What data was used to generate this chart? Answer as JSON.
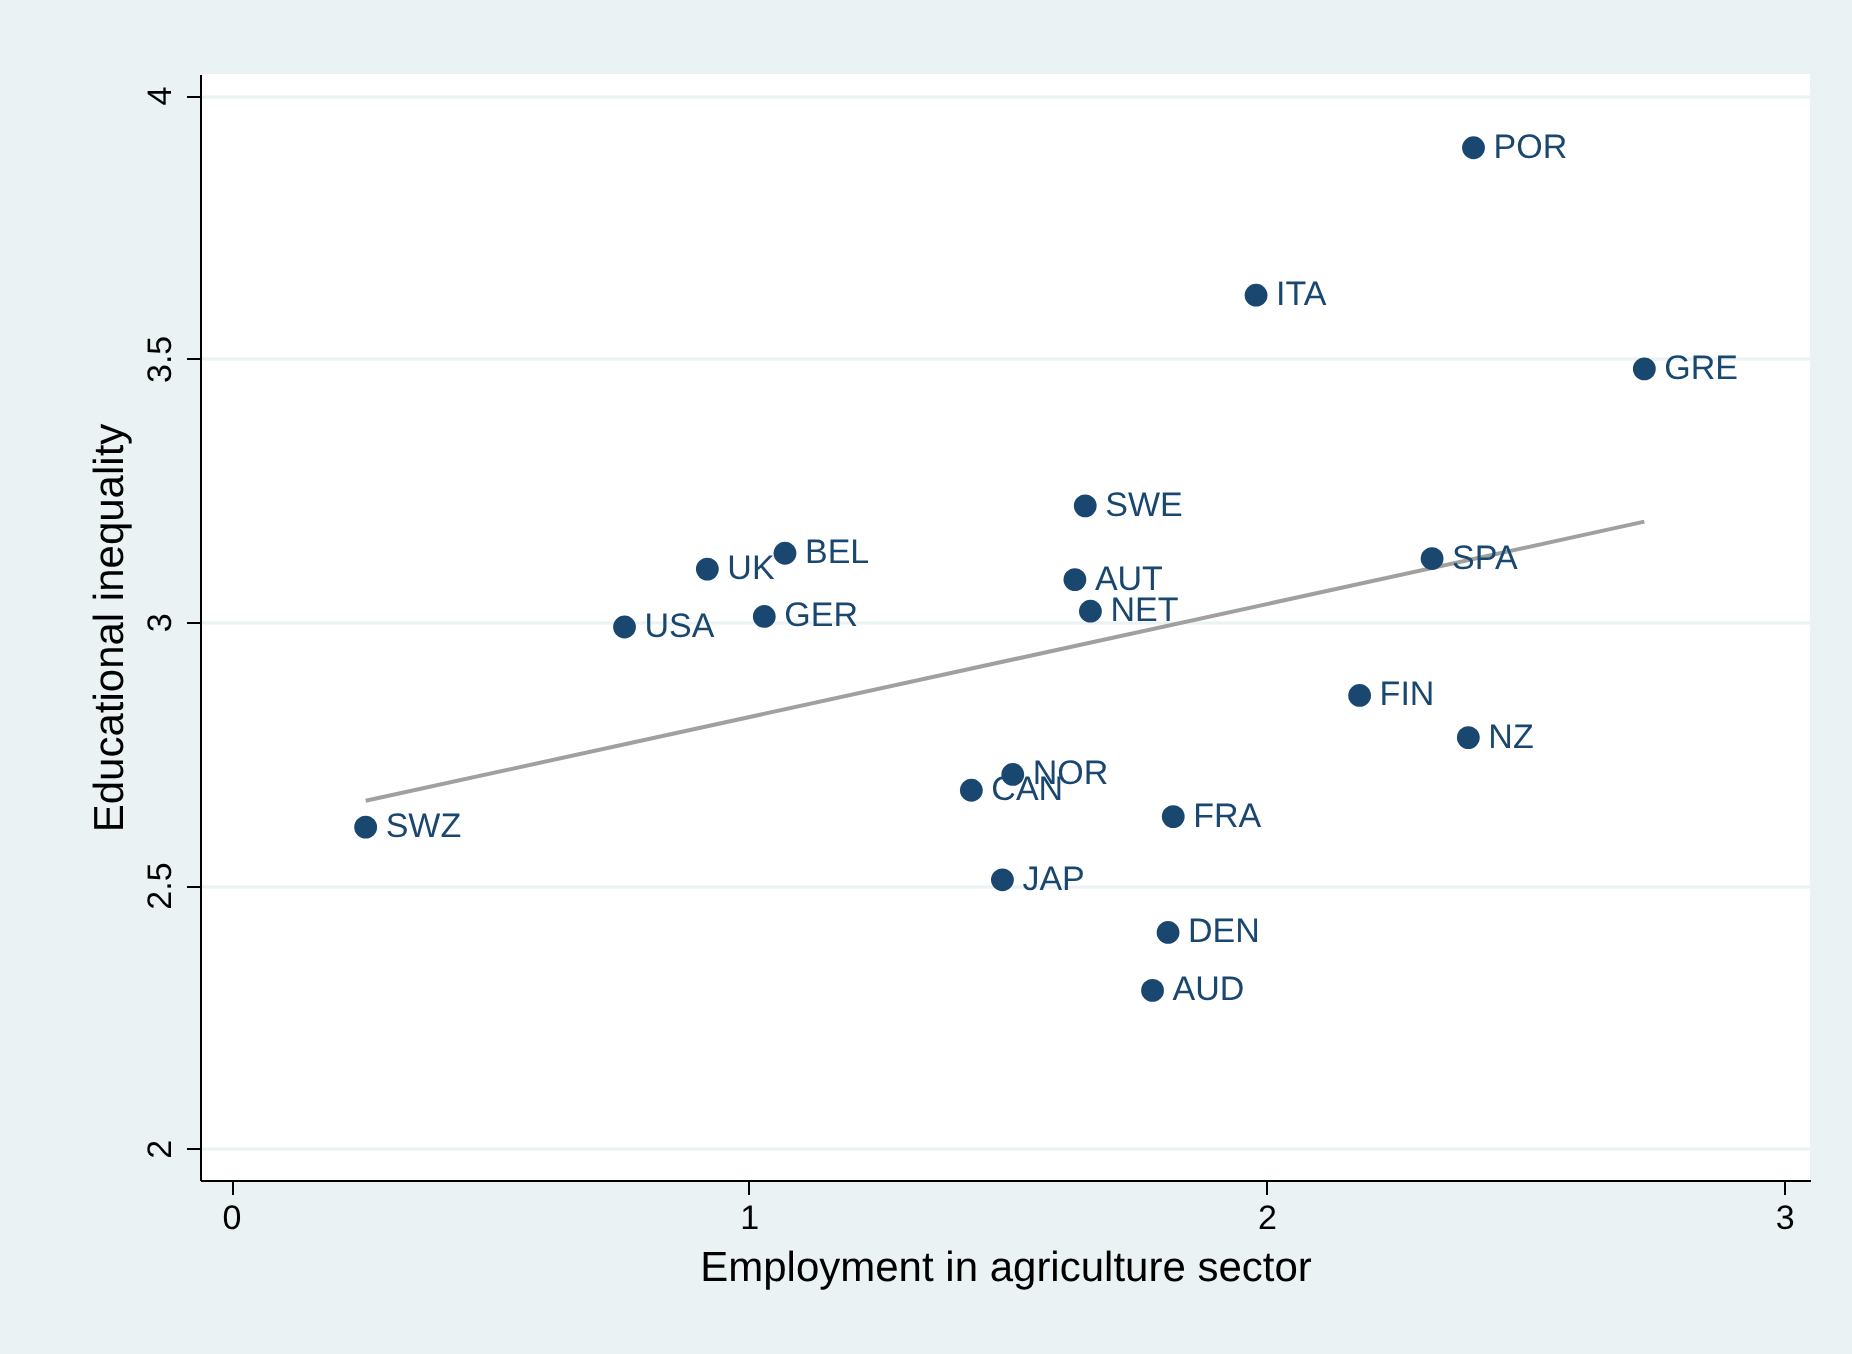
{
  "chart_data": {
    "type": "scatter",
    "xlabel": "Employment in agriculture sector",
    "ylabel": "Educational inequality",
    "xlim": [
      -0.06,
      3.05
    ],
    "ylim": [
      1.94,
      4.04
    ],
    "xticks": [
      0,
      1,
      2,
      3
    ],
    "yticks": [
      2,
      2.5,
      3,
      3.5,
      4
    ],
    "grid": "y",
    "series": [
      {
        "marker": "circle",
        "color": "#1a476f",
        "x": [
          2.4,
          1.98,
          2.73,
          1.65,
          2.32,
          1.07,
          0.92,
          1.63,
          1.66,
          1.03,
          0.76,
          2.18,
          2.39,
          1.51,
          1.43,
          1.82,
          0.26,
          1.49,
          1.81,
          1.78
        ],
        "values": [
          3.9,
          3.62,
          3.48,
          3.22,
          3.12,
          3.13,
          3.1,
          3.08,
          3.02,
          3.01,
          2.99,
          2.86,
          2.78,
          2.71,
          2.68,
          2.63,
          2.61,
          2.51,
          2.41,
          2.3
        ]
      },
      {
        "type": "line",
        "marker": "none",
        "color": "#a0a0a0",
        "x": [
          0.26,
          2.73
        ],
        "values": [
          2.66,
          3.19
        ]
      }
    ],
    "annotations": [
      {
        "text": "POR",
        "x": 2.4,
        "y": 3.9
      },
      {
        "text": "ITA",
        "x": 1.98,
        "y": 3.62
      },
      {
        "text": "GRE",
        "x": 2.73,
        "y": 3.48
      },
      {
        "text": "SWE",
        "x": 1.65,
        "y": 3.22
      },
      {
        "text": "SPA",
        "x": 2.32,
        "y": 3.12
      },
      {
        "text": "BEL",
        "x": 1.07,
        "y": 3.13
      },
      {
        "text": "UK",
        "x": 0.92,
        "y": 3.1
      },
      {
        "text": "AUT",
        "x": 1.63,
        "y": 3.08
      },
      {
        "text": "NET",
        "x": 1.66,
        "y": 3.02
      },
      {
        "text": "GER",
        "x": 1.03,
        "y": 3.01
      },
      {
        "text": "USA",
        "x": 0.76,
        "y": 2.99
      },
      {
        "text": "FIN",
        "x": 2.18,
        "y": 2.86
      },
      {
        "text": "NZ",
        "x": 2.39,
        "y": 2.78
      },
      {
        "text": "NOR",
        "x": 1.51,
        "y": 2.71
      },
      {
        "text": "CAN",
        "x": 1.43,
        "y": 2.68
      },
      {
        "text": "FRA",
        "x": 1.82,
        "y": 2.63
      },
      {
        "text": "SWZ",
        "x": 0.26,
        "y": 2.61
      },
      {
        "text": "JAP",
        "x": 1.49,
        "y": 2.51
      },
      {
        "text": "DEN",
        "x": 1.81,
        "y": 2.41
      },
      {
        "text": "AUD",
        "x": 1.78,
        "y": 2.3
      }
    ]
  }
}
